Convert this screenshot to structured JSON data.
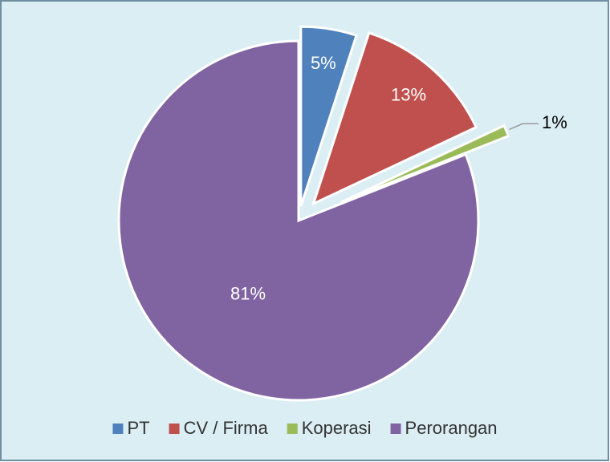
{
  "chart_data": {
    "type": "pie",
    "categories": [
      "PT",
      "CV / Firma",
      "Koperasi",
      "Perorangan"
    ],
    "values": [
      5,
      13,
      1,
      81
    ],
    "value_labels": [
      "5%",
      "13%",
      "1%",
      "81%"
    ],
    "colors": [
      "#4f81bd",
      "#c0504d",
      "#9bbb59",
      "#8064a2"
    ],
    "legend": "bottom"
  }
}
